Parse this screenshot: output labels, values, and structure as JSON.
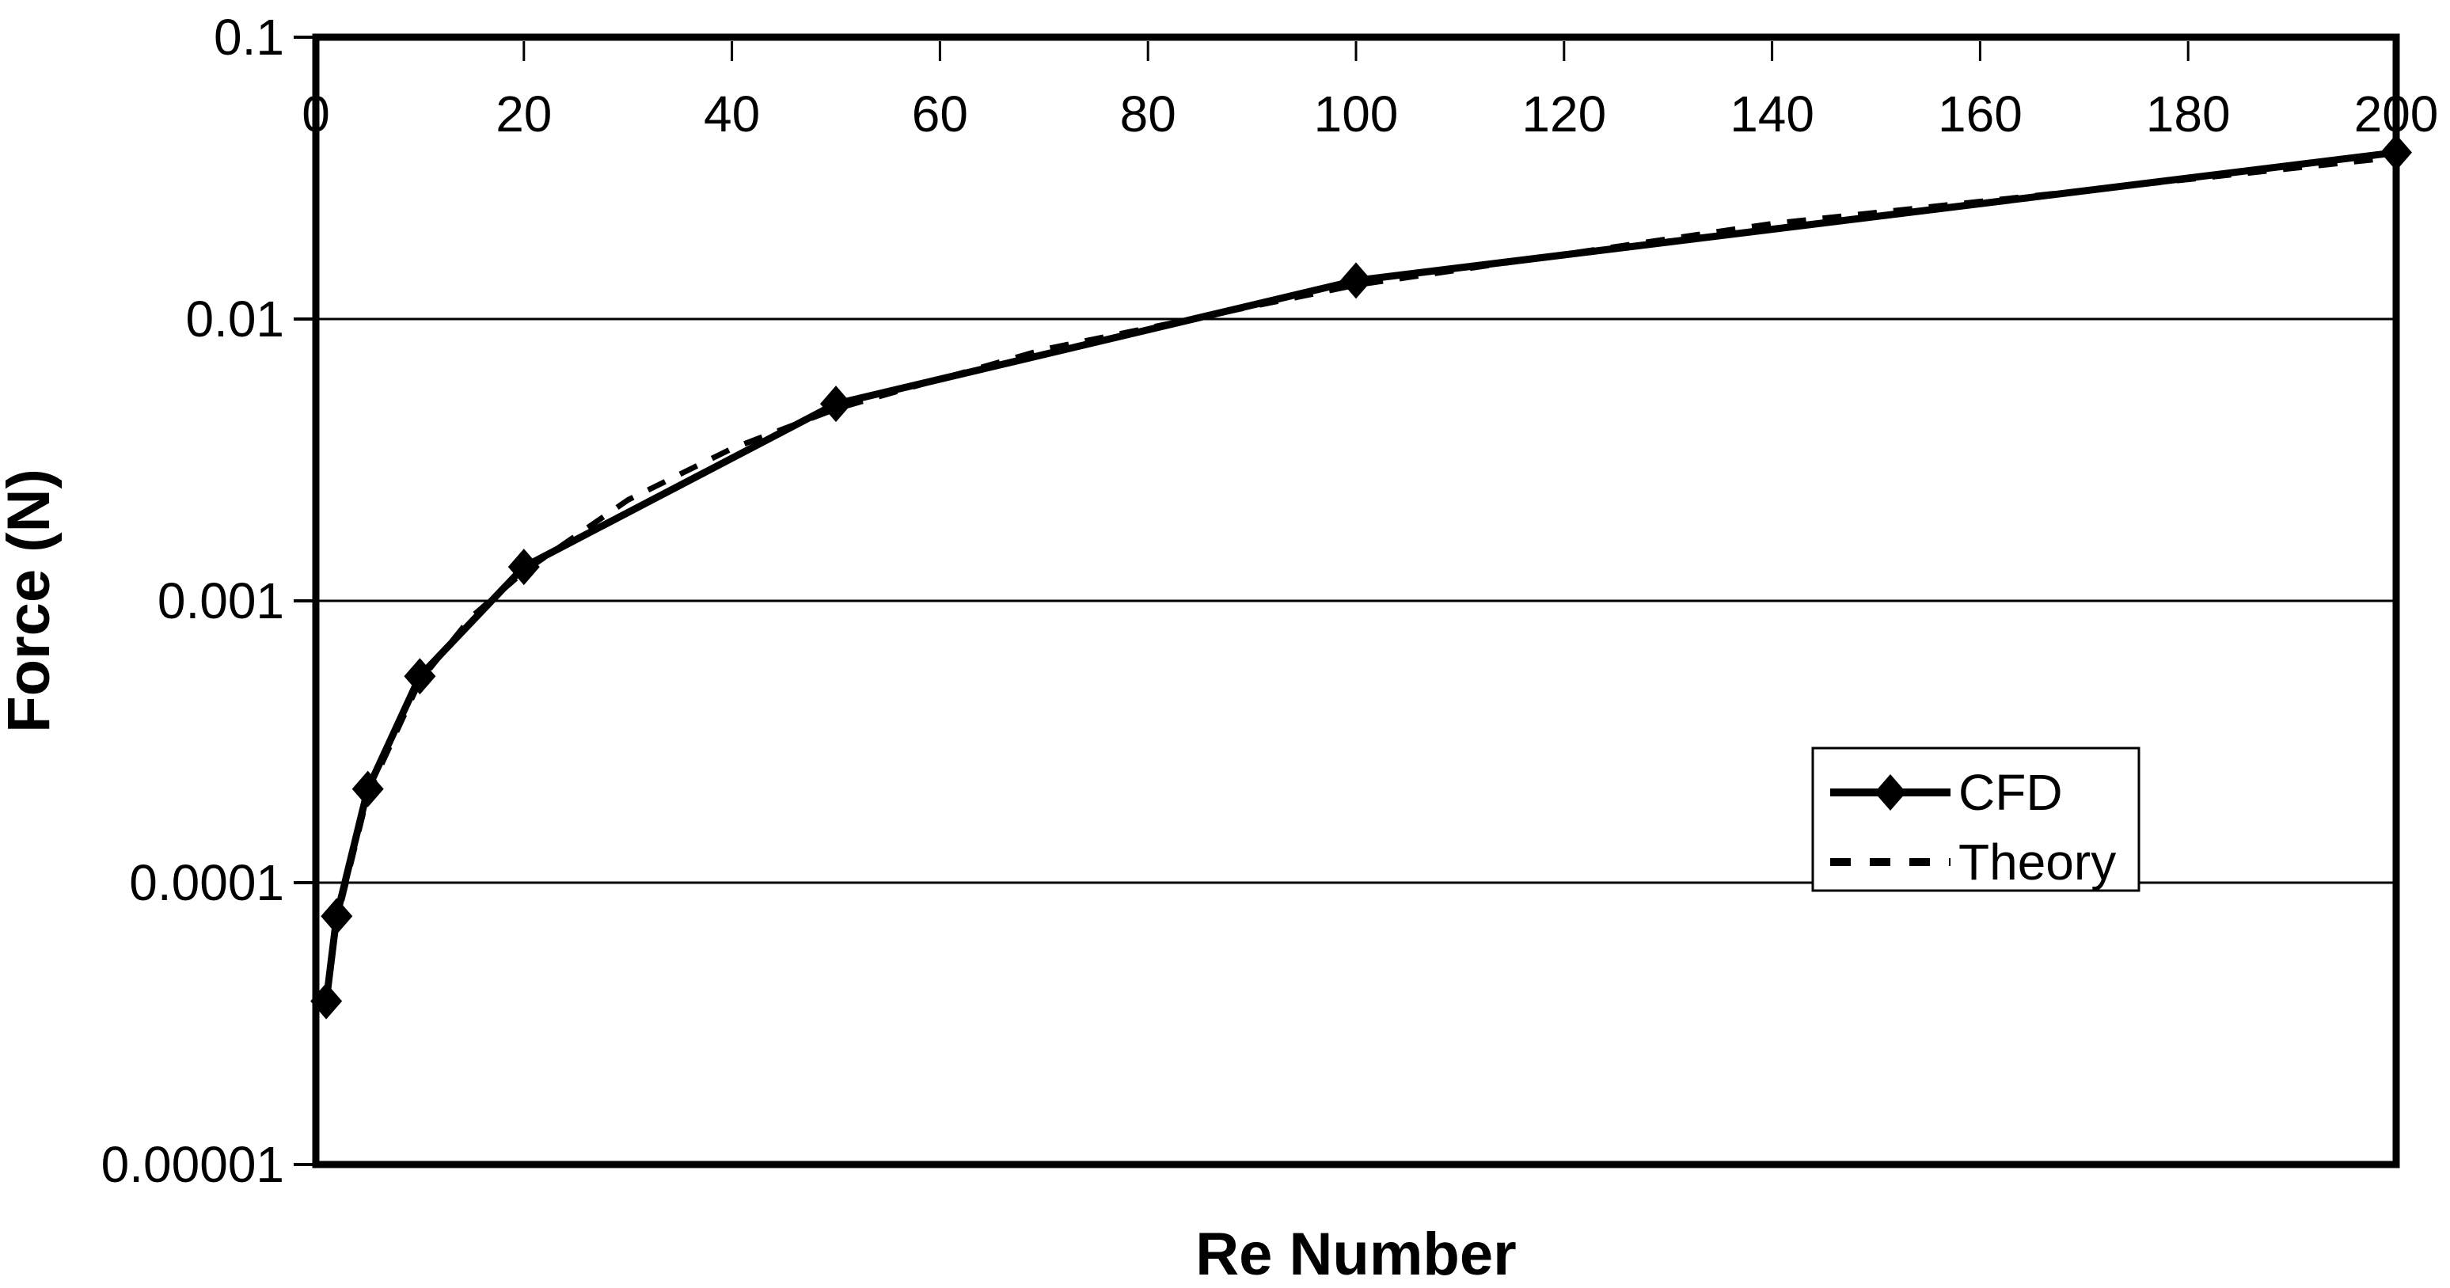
{
  "chart_data": {
    "type": "line",
    "title": "",
    "xlabel": "Re Number",
    "ylabel": "Force (N)",
    "x_axis": {
      "min": 0,
      "max": 200,
      "tick_values": [
        0,
        20,
        40,
        60,
        80,
        100,
        120,
        140,
        160,
        180,
        200
      ],
      "tick_labels": [
        "0",
        "20",
        "40",
        "60",
        "80",
        "100",
        "120",
        "140",
        "160",
        "180",
        "200"
      ],
      "position": "top",
      "scale": "linear"
    },
    "y_axis": {
      "min": 1e-05,
      "max": 0.1,
      "tick_values": [
        0.1,
        0.01,
        0.001,
        0.0001,
        1e-05
      ],
      "tick_labels": [
        "0.1",
        "0.01",
        "0.001",
        "0.0001",
        "0.00001"
      ],
      "position": "left",
      "scale": "log"
    },
    "grid": "horizontal-decade-lines",
    "legend": {
      "position": "middle-right",
      "border": true
    },
    "series": [
      {
        "name": "CFD",
        "style": "solid",
        "marker": "diamond",
        "x": [
          1,
          2,
          5,
          10,
          20,
          50,
          100,
          200
        ],
        "y": [
          3.8e-05,
          7.6e-05,
          0.000215,
          0.00054,
          0.00132,
          0.005,
          0.0137,
          0.039
        ]
      },
      {
        "name": "Theory",
        "style": "dashed",
        "marker": "none",
        "x": [
          1,
          2,
          5,
          10,
          15,
          20,
          30,
          40,
          50,
          70,
          100,
          140,
          200
        ],
        "y": [
          3.65e-05,
          7.3e-05,
          0.000206,
          0.00052,
          0.00088,
          0.00127,
          0.00228,
          0.00347,
          0.0048,
          0.0078,
          0.0132,
          0.0218,
          0.0375
        ]
      }
    ],
    "colors": {
      "ink": "#000000",
      "background": "#ffffff"
    }
  }
}
